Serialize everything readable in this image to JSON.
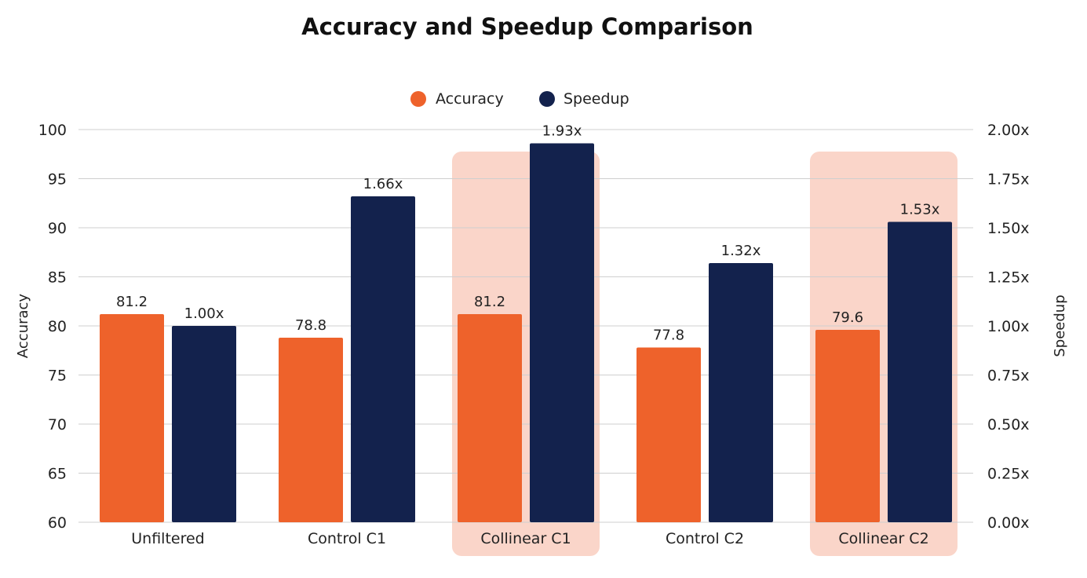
{
  "chart_data": {
    "type": "bar",
    "title": "Accuracy and Speedup Comparison",
    "categories": [
      "Unfiltered",
      "Control C1",
      "Collinear C1",
      "Control C2",
      "Collinear C2"
    ],
    "highlighted_categories": [
      "Collinear C1",
      "Collinear C2"
    ],
    "series": [
      {
        "name": "Accuracy",
        "axis": "left",
        "color": "#EE622B",
        "values": [
          81.2,
          78.8,
          81.2,
          77.8,
          79.6
        ],
        "labels": [
          "81.2",
          "78.8",
          "81.2",
          "77.8",
          "79.6"
        ]
      },
      {
        "name": "Speedup",
        "axis": "right",
        "color": "#13224D",
        "values": [
          1.0,
          1.66,
          1.93,
          1.32,
          1.53
        ],
        "labels": [
          "1.00x",
          "1.66x",
          "1.93x",
          "1.32x",
          "1.53x"
        ]
      }
    ],
    "ylabel": "Accuracy",
    "ylim": [
      60,
      100
    ],
    "yticks": [
      "60",
      "65",
      "70",
      "75",
      "80",
      "85",
      "90",
      "95",
      "100"
    ],
    "y2label": "Speedup",
    "y2lim": [
      0,
      2
    ],
    "y2ticks": [
      "0.00x",
      "0.25x",
      "0.50x",
      "0.75x",
      "1.00x",
      "1.25x",
      "1.50x",
      "1.75x",
      "2.00x"
    ],
    "grid": true,
    "legend_position": "top-center",
    "highlight_color": "#FAD5C9"
  }
}
